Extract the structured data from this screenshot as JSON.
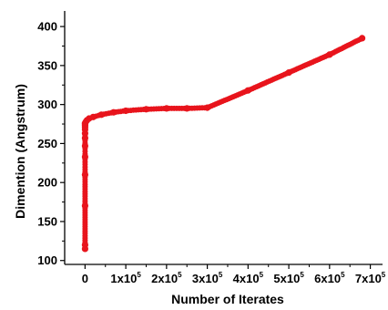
{
  "chart_data": {
    "type": "line",
    "xlabel": "Number of Iterates",
    "ylabel": "Dimention (Angstrum)",
    "xlim": [
      -50000,
      730000
    ],
    "ylim": [
      95,
      420
    ],
    "x_ticks": [
      {
        "value": 0,
        "base": "0",
        "exp": ""
      },
      {
        "value": 100000,
        "base": "1x10",
        "exp": "5"
      },
      {
        "value": 200000,
        "base": "2x10",
        "exp": "5"
      },
      {
        "value": 300000,
        "base": "3x10",
        "exp": "5"
      },
      {
        "value": 400000,
        "base": "4x10",
        "exp": "5"
      },
      {
        "value": 500000,
        "base": "5x10",
        "exp": "5"
      },
      {
        "value": 600000,
        "base": "6x10",
        "exp": "5"
      },
      {
        "value": 700000,
        "base": "7x10",
        "exp": "5"
      }
    ],
    "y_ticks": [
      100,
      150,
      200,
      250,
      300,
      350,
      400
    ],
    "grid": false,
    "series": [
      {
        "color": "#e8141c",
        "x": [
          0,
          0,
          0,
          0,
          0,
          0,
          0,
          0,
          0,
          0,
          0,
          0,
          0,
          2000,
          5000,
          10000,
          20000,
          40000,
          70000,
          100000,
          150000,
          200000,
          250000,
          300000,
          400000,
          500000,
          600000,
          680000
        ],
        "y": [
          115,
          120,
          170,
          210,
          233,
          247,
          257,
          263,
          268,
          271,
          273,
          275,
          276,
          278,
          280,
          282,
          284,
          287,
          290,
          292,
          294,
          295,
          295,
          296,
          318,
          341,
          364,
          385
        ]
      }
    ]
  }
}
